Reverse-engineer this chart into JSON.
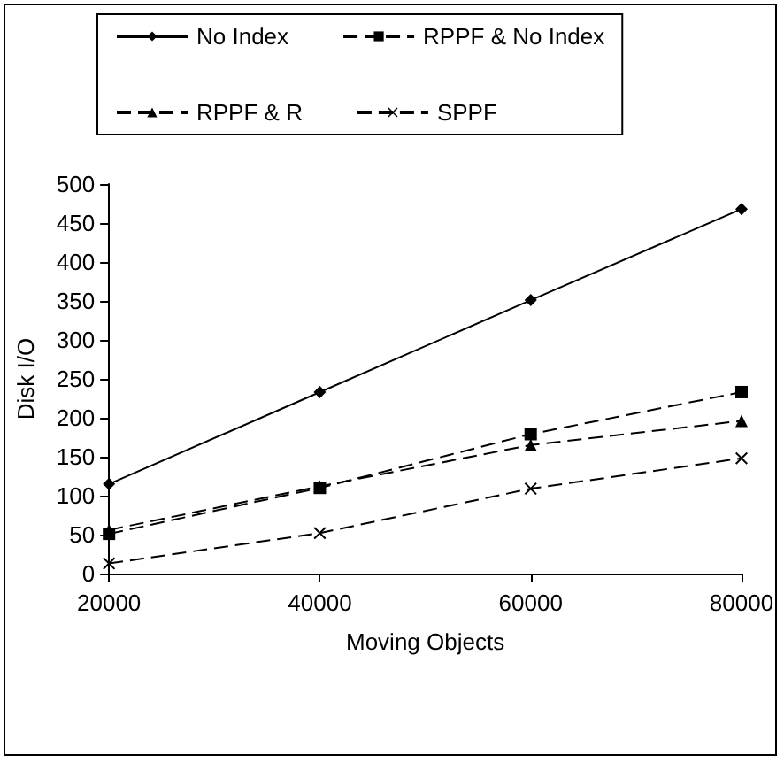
{
  "chart_data": {
    "type": "line",
    "xlabel": "Moving Objects",
    "ylabel": "Disk I/O",
    "x": [
      20000,
      40000,
      60000,
      80000
    ],
    "series": [
      {
        "name": "No Index",
        "color": "#000000",
        "marker": "diamond",
        "line_style": "solid",
        "values": [
          115,
          233,
          351,
          468
        ]
      },
      {
        "name": "RPPF & No Index",
        "color": "#000000",
        "marker": "square",
        "line_style": "dashed",
        "values": [
          51,
          110,
          179,
          233
        ]
      },
      {
        "name": "RPPF & R",
        "color": "#000000",
        "marker": "triangle",
        "line_style": "dashed",
        "values": [
          56,
          112,
          165,
          196
        ]
      },
      {
        "name": "SPPF",
        "color": "#000000",
        "marker": "cross",
        "line_style": "dashed",
        "values": [
          13,
          52,
          109,
          148
        ]
      }
    ],
    "xlim": [
      20000,
      80000
    ],
    "xticks": [
      20000,
      40000,
      60000,
      80000
    ],
    "ylim": [
      0,
      500
    ],
    "yticks": [
      0,
      50,
      100,
      150,
      200,
      250,
      300,
      350,
      400,
      450,
      500
    ],
    "grid": false,
    "legend": "top"
  }
}
